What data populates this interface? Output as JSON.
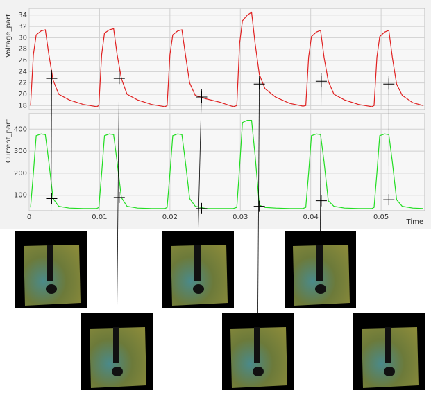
{
  "chart_data": [
    {
      "type": "line",
      "ylabel": "Voltage_part",
      "color": "#e02020",
      "x": [
        0.0002,
        0.0006,
        0.001,
        0.0017,
        0.0023,
        0.0028,
        0.0034,
        0.0042,
        0.0057,
        0.0077,
        0.0096,
        0.0099,
        0.0103,
        0.0107,
        0.0114,
        0.012,
        0.0125,
        0.0131,
        0.0139,
        0.0154,
        0.0174,
        0.0193,
        0.0196,
        0.02,
        0.0204,
        0.0211,
        0.0217,
        0.0222,
        0.0228,
        0.0236,
        0.0251,
        0.0271,
        0.029,
        0.0295,
        0.0299,
        0.0303,
        0.031,
        0.0316,
        0.0321,
        0.0327,
        0.0335,
        0.035,
        0.037,
        0.0389,
        0.0393,
        0.0397,
        0.0401,
        0.0408,
        0.0414,
        0.0419,
        0.0425,
        0.0433,
        0.0448,
        0.0468,
        0.0487,
        0.049,
        0.0494,
        0.0498,
        0.0505,
        0.0511,
        0.0516,
        0.0522,
        0.053,
        0.0545,
        0.056
      ],
      "values": [
        18,
        27,
        30.5,
        31.2,
        31.4,
        27,
        22.5,
        20,
        19,
        18.2,
        17.8,
        18,
        27,
        30.8,
        31.4,
        31.6,
        27,
        22.8,
        20,
        19,
        18.2,
        17.8,
        18,
        27,
        30.5,
        31.2,
        31.4,
        27,
        22,
        19.8,
        19.2,
        18.6,
        17.8,
        18,
        29,
        33,
        34,
        34.5,
        29,
        23.5,
        21,
        19.5,
        18.4,
        17.9,
        18,
        26.5,
        30.2,
        31,
        31.3,
        26.5,
        22.3,
        20,
        19,
        18.2,
        17.8,
        18,
        26.5,
        30.2,
        31,
        31.3,
        26.5,
        21.8,
        19.8,
        18.5,
        18
      ],
      "xlim": [
        0,
        0.0562
      ],
      "ylim": [
        17.3,
        35.2
      ],
      "yticks": [
        18,
        20,
        22,
        24,
        26,
        28,
        30,
        32,
        34
      ],
      "xticks": [
        0,
        0.01,
        0.02,
        0.03,
        0.04,
        0.05
      ],
      "markers": {
        "x": [
          0.0032,
          0.0128,
          0.0245,
          0.0327,
          0.0415,
          0.0511
        ],
        "values": [
          22.8,
          22.8,
          19.5,
          21.8,
          22.3,
          21.8
        ]
      }
    },
    {
      "type": "line",
      "ylabel": "Current_part",
      "xlabel": "Time",
      "color": "#22dd22",
      "x": [
        0.0002,
        0.0006,
        0.001,
        0.0017,
        0.0023,
        0.0028,
        0.0034,
        0.0042,
        0.0057,
        0.0077,
        0.0096,
        0.0099,
        0.0103,
        0.0107,
        0.0114,
        0.012,
        0.0125,
        0.0131,
        0.0139,
        0.0154,
        0.0174,
        0.0193,
        0.0196,
        0.02,
        0.0204,
        0.0211,
        0.0217,
        0.0222,
        0.0228,
        0.0236,
        0.0251,
        0.0271,
        0.029,
        0.0295,
        0.0299,
        0.0303,
        0.031,
        0.0316,
        0.0321,
        0.0327,
        0.0335,
        0.035,
        0.037,
        0.0389,
        0.0393,
        0.0397,
        0.0401,
        0.0408,
        0.0414,
        0.0419,
        0.0425,
        0.0433,
        0.0448,
        0.0468,
        0.0487,
        0.049,
        0.0494,
        0.0498,
        0.0505,
        0.0511,
        0.0516,
        0.0522,
        0.053,
        0.0545,
        0.056
      ],
      "values": [
        45,
        200,
        370,
        378,
        375,
        250,
        85,
        50,
        42,
        40,
        40,
        45,
        200,
        370,
        378,
        375,
        250,
        90,
        50,
        42,
        40,
        40,
        45,
        200,
        370,
        378,
        375,
        250,
        85,
        50,
        40,
        40,
        40,
        45,
        230,
        430,
        440,
        440,
        280,
        55,
        45,
        42,
        40,
        40,
        45,
        200,
        370,
        378,
        375,
        250,
        75,
        50,
        42,
        40,
        40,
        45,
        200,
        370,
        378,
        375,
        250,
        80,
        50,
        42,
        40
      ],
      "xlim": [
        0,
        0.0562
      ],
      "ylim": [
        30,
        470
      ],
      "yticks": [
        100,
        200,
        300,
        400
      ],
      "xticks": [
        0,
        0.01,
        0.02,
        0.03,
        0.04,
        0.05
      ],
      "markers": {
        "x": [
          0.0032,
          0.0128,
          0.0245,
          0.0327,
          0.0415,
          0.0511
        ],
        "values": [
          85,
          90,
          40,
          50,
          75,
          80
        ]
      }
    }
  ]
}
